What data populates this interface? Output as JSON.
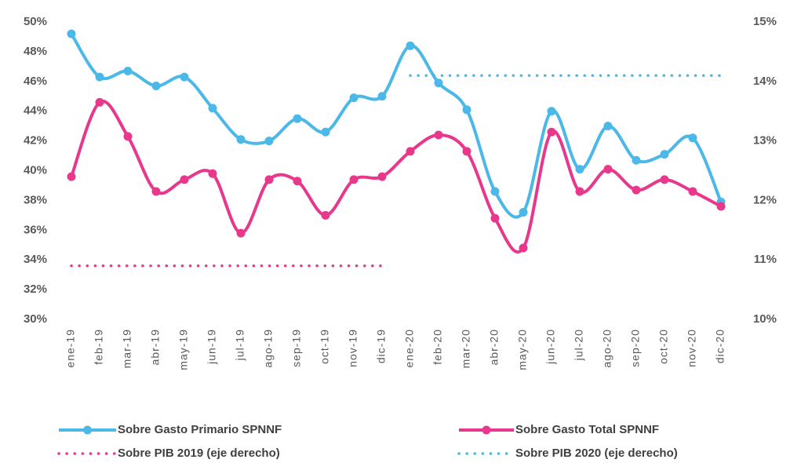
{
  "chart_data": {
    "type": "line",
    "categories": [
      "ene-19",
      "feb-19",
      "mar-19",
      "abr-19",
      "may-19",
      "jun-19",
      "jul-19",
      "ago-19",
      "sep-19",
      "oct-19",
      "nov-19",
      "dic-19",
      "ene-20",
      "feb-20",
      "mar-20",
      "abr-20",
      "may-20",
      "jun-20",
      "jul-20",
      "ago-20",
      "sep-20",
      "oct-20",
      "nov-20",
      "dic-20"
    ],
    "series": [
      {
        "name": "Sobre Gasto Primario SPNNF",
        "color": "#4bb8e8",
        "style": "smooth",
        "markers": true,
        "values": [
          49.2,
          46.3,
          46.7,
          45.7,
          46.3,
          44.2,
          42.1,
          42.0,
          43.5,
          42.6,
          44.9,
          45.0,
          48.4,
          45.9,
          44.1,
          38.6,
          37.2,
          44.0,
          40.1,
          43.0,
          40.7,
          41.1,
          42.2,
          37.9
        ]
      },
      {
        "name": "Sobre Gasto Total SPNNF",
        "color": "#e8388c",
        "style": "smooth",
        "markers": true,
        "values": [
          39.6,
          44.6,
          42.3,
          38.6,
          39.4,
          39.8,
          35.8,
          39.4,
          39.3,
          37.0,
          39.4,
          39.6,
          41.3,
          42.4,
          41.3,
          36.8,
          34.8,
          42.6,
          38.6,
          40.1,
          38.7,
          39.4,
          38.6,
          37.6
        ]
      },
      {
        "name": "Sobre PIB 2019 (eje derecho)",
        "color": "#e8388c",
        "style": "dotted",
        "markers": false,
        "axis": "y2",
        "values": [
          10.9,
          10.9,
          10.9,
          10.9,
          10.9,
          10.9,
          10.9,
          10.9,
          10.9,
          10.9,
          10.9,
          10.9,
          null,
          null,
          null,
          null,
          null,
          null,
          null,
          null,
          null,
          null,
          null,
          null
        ]
      },
      {
        "name": "Sobre PIB 2020 (eje derecho)",
        "color": "#4bb8e8",
        "style": "dotted",
        "markers": false,
        "axis": "y2",
        "values": [
          null,
          null,
          null,
          null,
          null,
          null,
          null,
          null,
          null,
          null,
          null,
          null,
          14.1,
          14.1,
          14.1,
          14.1,
          14.1,
          14.1,
          14.1,
          14.1,
          14.1,
          14.1,
          14.1,
          14.1
        ]
      }
    ],
    "ylim": [
      30,
      50
    ],
    "yticks": [
      {
        "value": 30,
        "label": "30%"
      },
      {
        "value": 32,
        "label": "32%"
      },
      {
        "value": 34,
        "label": "34%"
      },
      {
        "value": 36,
        "label": "36%"
      },
      {
        "value": 38,
        "label": "38%"
      },
      {
        "value": 40,
        "label": "40%"
      },
      {
        "value": 42,
        "label": "42%"
      },
      {
        "value": 44,
        "label": "44%"
      },
      {
        "value": 46,
        "label": "46%"
      },
      {
        "value": 48,
        "label": "48%"
      },
      {
        "value": 50,
        "label": "50%"
      }
    ],
    "y2lim": [
      10,
      15
    ],
    "y2ticks": [
      {
        "value": 10,
        "label": "10%"
      },
      {
        "value": 11,
        "label": "11%"
      },
      {
        "value": 12,
        "label": "12%"
      },
      {
        "value": 13,
        "label": "13%"
      },
      {
        "value": 14,
        "label": "14%"
      },
      {
        "value": 15,
        "label": "15%"
      }
    ],
    "grid": false,
    "legend": "bottom"
  }
}
